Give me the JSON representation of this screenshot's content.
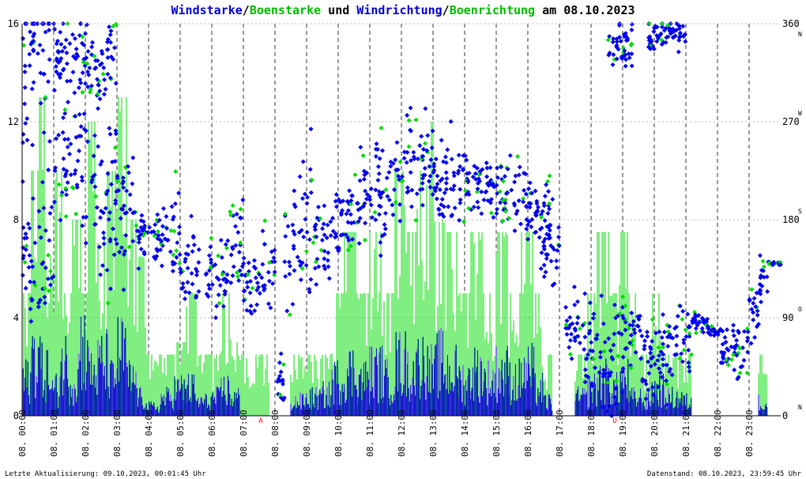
{
  "chart_data": {
    "type": "line",
    "title": [
      {
        "text": "Windstarke",
        "color": "#0000cc"
      },
      {
        "text": "/",
        "color": "#000000"
      },
      {
        "text": "Boenstarke",
        "color": "#00bb00"
      },
      {
        "text": " und ",
        "color": "#000000"
      },
      {
        "text": "Windrichtung",
        "color": "#0000cc"
      },
      {
        "text": "/",
        "color": "#000000"
      },
      {
        "text": "Boenrichtung",
        "color": "#00bb00"
      },
      {
        "text": " am 08.10.2023",
        "color": "#000000"
      }
    ],
    "y_left": {
      "ylim": [
        0,
        16
      ],
      "ticks": [
        "0",
        "4",
        "8",
        "12",
        "16"
      ]
    },
    "y_right": {
      "ylim": [
        0,
        360
      ],
      "ticks": [
        "0",
        "90",
        "180",
        "270",
        "360"
      ],
      "compass": [
        {
          "v": 0,
          "label": "N"
        },
        {
          "v": 90,
          "label": "O"
        },
        {
          "v": 180,
          "label": "S"
        },
        {
          "v": 270,
          "label": "W"
        },
        {
          "v": 360,
          "label": "N"
        }
      ]
    },
    "x": {
      "xlim": [
        0,
        24
      ],
      "tick_labels": [
        "08. 00:00",
        "08. 01:00",
        "08. 02:00",
        "08. 03:00",
        "08. 04:00",
        "08. 05:00",
        "08. 06:00",
        "08. 07:00",
        "08. 08:00",
        "08. 09:00",
        "08. 10:00",
        "08. 11:00",
        "08. 12:00",
        "08. 13:00",
        "08. 14:00",
        "08. 15:00",
        "08. 16:00",
        "08. 17:00",
        "08. 18:00",
        "08. 19:00",
        "08. 20:00",
        "08. 21:00",
        "08. 22:00",
        "08. 23:00"
      ]
    },
    "markers": [
      {
        "x": 7.55,
        "label": "A"
      },
      {
        "x": 18.75,
        "label": "U"
      }
    ],
    "series": [
      {
        "name": "Windstarke",
        "color": "#0000cc",
        "kind": "wind_speed"
      },
      {
        "name": "Boenstarke",
        "color": "#00dd00",
        "kind": "gust_speed"
      },
      {
        "name": "Windrichtung",
        "color": "#0000ee",
        "kind": "wind_direction"
      },
      {
        "name": "Boenrichtung",
        "color": "#00dd00",
        "kind": "gust_direction"
      }
    ],
    "gust_segments": [
      [
        0.0,
        5.0
      ],
      [
        0.3,
        10.0
      ],
      [
        0.5,
        13.0
      ],
      [
        0.8,
        6.5
      ],
      [
        1.0,
        10.0
      ],
      [
        1.3,
        5.0
      ],
      [
        1.6,
        8.0
      ],
      [
        1.9,
        5.0
      ],
      [
        2.1,
        12.0
      ],
      [
        2.4,
        7.5
      ],
      [
        2.7,
        10.0
      ],
      [
        3.0,
        13.0
      ],
      [
        3.3,
        8.0
      ],
      [
        3.6,
        6.5
      ],
      [
        3.9,
        2.5
      ],
      [
        4.4,
        2.5
      ],
      [
        4.8,
        3.0
      ],
      [
        5.2,
        5.0
      ],
      [
        5.5,
        2.5
      ],
      [
        6.0,
        2.5
      ],
      [
        6.3,
        5.0
      ],
      [
        6.6,
        3.0
      ],
      [
        6.9,
        2.5
      ],
      [
        7.5,
        2.5
      ],
      [
        8.5,
        2.5
      ],
      [
        9.0,
        2.5
      ],
      [
        9.5,
        2.5
      ],
      [
        9.8,
        5.0
      ],
      [
        10.2,
        7.5
      ],
      [
        10.6,
        5.0
      ],
      [
        11.0,
        7.5
      ],
      [
        11.4,
        5.0
      ],
      [
        11.8,
        10.0
      ],
      [
        12.2,
        7.5
      ],
      [
        12.5,
        10.0
      ],
      [
        12.8,
        12.0
      ],
      [
        13.1,
        8.0
      ],
      [
        13.4,
        7.5
      ],
      [
        13.8,
        5.0
      ],
      [
        14.2,
        7.5
      ],
      [
        14.6,
        5.0
      ],
      [
        15.0,
        7.5
      ],
      [
        15.4,
        5.0
      ],
      [
        15.8,
        7.5
      ],
      [
        16.2,
        5.0
      ],
      [
        16.5,
        2.5
      ],
      [
        17.5,
        2.5
      ],
      [
        17.9,
        5.0
      ],
      [
        18.2,
        7.5
      ],
      [
        18.6,
        5.0
      ],
      [
        18.9,
        7.5
      ],
      [
        19.2,
        5.0
      ],
      [
        19.6,
        2.5
      ],
      [
        19.9,
        5.0
      ],
      [
        20.3,
        2.5
      ],
      [
        20.6,
        2.5
      ],
      [
        20.9,
        2.5
      ],
      [
        23.3,
        2.5
      ]
    ],
    "wind_segments": [
      [
        0.0,
        2.0
      ],
      [
        0.3,
        3.5
      ],
      [
        0.6,
        2.5
      ],
      [
        0.9,
        1.5
      ],
      [
        1.2,
        3.0
      ],
      [
        1.5,
        2.0
      ],
      [
        1.8,
        4.0
      ],
      [
        2.1,
        2.5
      ],
      [
        2.4,
        3.0
      ],
      [
        2.7,
        2.0
      ],
      [
        3.0,
        3.5
      ],
      [
        3.3,
        2.0
      ],
      [
        3.6,
        1.0
      ],
      [
        3.9,
        0.5
      ],
      [
        4.4,
        1.0
      ],
      [
        4.8,
        1.5
      ],
      [
        5.2,
        1.5
      ],
      [
        5.5,
        0.8
      ],
      [
        6.0,
        1.0
      ],
      [
        6.3,
        1.5
      ],
      [
        6.6,
        1.0
      ],
      [
        8.5,
        0.8
      ],
      [
        9.0,
        1.0
      ],
      [
        9.5,
        1.2
      ],
      [
        9.8,
        2.0
      ],
      [
        10.2,
        2.5
      ],
      [
        10.6,
        2.0
      ],
      [
        11.0,
        2.5
      ],
      [
        11.4,
        2.0
      ],
      [
        11.8,
        3.0
      ],
      [
        12.2,
        2.5
      ],
      [
        12.5,
        3.0
      ],
      [
        12.8,
        2.5
      ],
      [
        13.1,
        3.0
      ],
      [
        13.4,
        2.5
      ],
      [
        13.8,
        2.0
      ],
      [
        14.2,
        2.5
      ],
      [
        14.6,
        2.0
      ],
      [
        15.0,
        2.5
      ],
      [
        15.4,
        2.0
      ],
      [
        15.8,
        2.5
      ],
      [
        16.2,
        1.5
      ],
      [
        16.5,
        0.8
      ],
      [
        17.5,
        1.0
      ],
      [
        17.9,
        1.5
      ],
      [
        18.2,
        2.0
      ],
      [
        18.6,
        1.5
      ],
      [
        18.9,
        2.0
      ],
      [
        19.2,
        1.0
      ],
      [
        19.6,
        0.8
      ],
      [
        19.9,
        1.5
      ],
      [
        20.3,
        1.0
      ],
      [
        20.6,
        1.0
      ],
      [
        20.9,
        0.8
      ],
      [
        23.3,
        0.8
      ]
    ],
    "direction_bands": [
      [
        0.0,
        1.0,
        330,
        90
      ],
      [
        0.0,
        1.0,
        150,
        60
      ],
      [
        1.0,
        2.0,
        240,
        80
      ],
      [
        1.0,
        2.0,
        330,
        40
      ],
      [
        2.0,
        3.0,
        200,
        90
      ],
      [
        2.0,
        3.0,
        320,
        40
      ],
      [
        3.0,
        3.6,
        190,
        60
      ],
      [
        3.6,
        4.3,
        165,
        25
      ],
      [
        4.3,
        4.6,
        170,
        30
      ],
      [
        4.6,
        5.0,
        175,
        40
      ],
      [
        5.0,
        5.6,
        140,
        35
      ],
      [
        5.8,
        6.5,
        130,
        40
      ],
      [
        6.5,
        7.0,
        150,
        60
      ],
      [
        7.0,
        7.6,
        120,
        30
      ],
      [
        7.6,
        8.0,
        140,
        35
      ],
      [
        8.0,
        8.3,
        30,
        25
      ],
      [
        8.3,
        8.6,
        140,
        60
      ],
      [
        8.6,
        9.2,
        180,
        70
      ],
      [
        9.2,
        9.8,
        160,
        40
      ],
      [
        9.8,
        10.4,
        180,
        40
      ],
      [
        10.4,
        11.0,
        200,
        50
      ],
      [
        11.0,
        12.0,
        210,
        45
      ],
      [
        12.0,
        13.0,
        230,
        45
      ],
      [
        13.0,
        14.0,
        215,
        40
      ],
      [
        14.0,
        15.0,
        210,
        35
      ],
      [
        15.0,
        16.0,
        200,
        35
      ],
      [
        16.0,
        16.8,
        190,
        30
      ],
      [
        16.4,
        17.0,
        150,
        25
      ],
      [
        17.2,
        17.8,
        80,
        35
      ],
      [
        17.8,
        18.3,
        60,
        40
      ],
      [
        18.3,
        19.0,
        50,
        45
      ],
      [
        18.5,
        19.3,
        340,
        20
      ],
      [
        19.0,
        19.6,
        70,
        35
      ],
      [
        19.6,
        20.2,
        50,
        40
      ],
      [
        20.2,
        20.8,
        60,
        35
      ],
      [
        19.8,
        21.0,
        350,
        15
      ],
      [
        20.8,
        21.2,
        70,
        30
      ],
      [
        21.2,
        21.7,
        85,
        10
      ],
      [
        21.7,
        22.1,
        78,
        4
      ],
      [
        22.1,
        22.6,
        60,
        18
      ],
      [
        22.6,
        23.0,
        50,
        25
      ],
      [
        23.0,
        23.3,
        95,
        30
      ],
      [
        23.3,
        23.6,
        125,
        20
      ],
      [
        23.6,
        24.0,
        140,
        2
      ]
    ]
  },
  "footer": {
    "left": "Letzte Aktualisierung: 09.10.2023, 00:01:45 Uhr",
    "right": "Datenstand: 08.10.2023, 23:59:45 Uhr"
  }
}
